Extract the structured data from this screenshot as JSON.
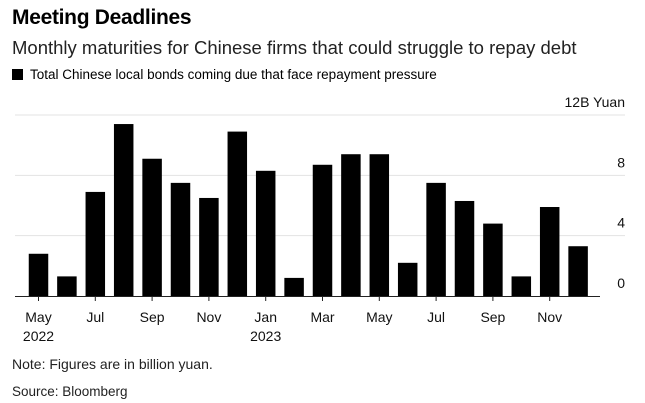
{
  "title": "Meeting Deadlines",
  "subtitle": "Monthly maturities for Chinese firms that could struggle to repay debt",
  "note": "Note: Figures are in billion yuan.",
  "source": "Source: Bloomberg",
  "colors": {
    "bar": "#000000",
    "grid": "#e3e3e3",
    "baseline": "#222222"
  },
  "chart_data": {
    "type": "bar",
    "series": [
      {
        "name": "Total Chinese local bonds coming due that face repayment pressure",
        "values": [
          2.8,
          1.3,
          6.9,
          11.4,
          9.1,
          7.5,
          6.5,
          10.9,
          8.3,
          1.2,
          8.7,
          9.4,
          9.4,
          2.2,
          7.5,
          6.3,
          4.8,
          1.3,
          5.9,
          3.3
        ]
      }
    ],
    "categories": [
      "May 2022",
      "Jun 2022",
      "Jul 2022",
      "Aug 2022",
      "Sep 2022",
      "Oct 2022",
      "Nov 2022",
      "Dec 2022",
      "Jan 2023",
      "Feb 2023",
      "Mar 2023",
      "Apr 2023",
      "May 2023",
      "Jun 2023",
      "Jul 2023",
      "Aug 2023",
      "Sep 2023",
      "Oct 2023",
      "Nov 2023",
      "Dec 2023"
    ],
    "x_tick_labels": [
      {
        "index": 0,
        "label": "May",
        "sublabel": "2022"
      },
      {
        "index": 2,
        "label": "Jul",
        "sublabel": ""
      },
      {
        "index": 4,
        "label": "Sep",
        "sublabel": ""
      },
      {
        "index": 6,
        "label": "Nov",
        "sublabel": ""
      },
      {
        "index": 8,
        "label": "Jan",
        "sublabel": "2023"
      },
      {
        "index": 10,
        "label": "Mar",
        "sublabel": ""
      },
      {
        "index": 12,
        "label": "May",
        "sublabel": ""
      },
      {
        "index": 14,
        "label": "Jul",
        "sublabel": ""
      },
      {
        "index": 16,
        "label": "Sep",
        "sublabel": ""
      },
      {
        "index": 18,
        "label": "Nov",
        "sublabel": ""
      }
    ],
    "y_ticks": [
      0,
      4,
      8,
      12
    ],
    "y_tick_labels": [
      "0",
      "4",
      "8",
      "12B Yuan"
    ],
    "ylim": [
      0,
      12
    ],
    "grid": true,
    "legend_position": "top-left"
  }
}
